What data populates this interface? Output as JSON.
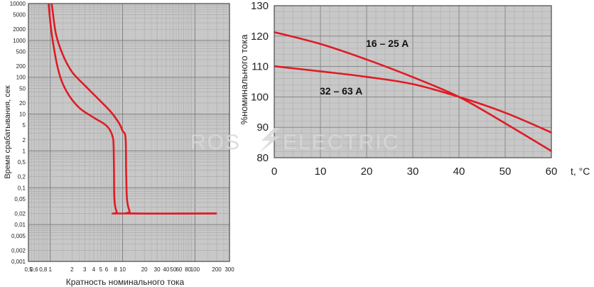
{
  "colors": {
    "curve": "#e01b24",
    "plot_bg": "#c8c8c8",
    "grid_minor": "#a9a9a9",
    "grid_major": "#808080",
    "frame": "#4a4a4a",
    "watermark": "#d8d8d8"
  },
  "watermark": {
    "left": "ROS",
    "right": "ELECTRIC"
  },
  "chart_data": [
    {
      "type": "line",
      "scale": "log-log",
      "title": "",
      "xlabel": "Кратность номинального тока",
      "ylabel": "Время срабатывания, сек",
      "xlim": [
        0.5,
        300
      ],
      "ylim": [
        0.001,
        10000
      ],
      "grid": true,
      "x_ticks": [
        {
          "v": 0.5,
          "t": "0,5"
        },
        {
          "v": 0.6,
          "t": "0,6"
        },
        {
          "v": 0.8,
          "t": "0,8"
        },
        {
          "v": 1,
          "t": "1"
        },
        {
          "v": 2,
          "t": "2"
        },
        {
          "v": 3,
          "t": "3"
        },
        {
          "v": 4,
          "t": "4"
        },
        {
          "v": 5,
          "t": "5"
        },
        {
          "v": 6,
          "t": "6"
        },
        {
          "v": 8,
          "t": "8"
        },
        {
          "v": 10,
          "t": "10"
        },
        {
          "v": 20,
          "t": "20"
        },
        {
          "v": 30,
          "t": "30"
        },
        {
          "v": 40,
          "t": "40"
        },
        {
          "v": 50,
          "t": "50"
        },
        {
          "v": 60,
          "t": "60"
        },
        {
          "v": 80,
          "t": "80"
        },
        {
          "v": 100,
          "t": "100"
        },
        {
          "v": 200,
          "t": "200"
        },
        {
          "v": 300,
          "t": "300"
        }
      ],
      "y_ticks": [
        {
          "v": 10000,
          "t": "10000"
        },
        {
          "v": 5000,
          "t": "5000"
        },
        {
          "v": 2000,
          "t": "2000"
        },
        {
          "v": 1000,
          "t": "1000"
        },
        {
          "v": 500,
          "t": "500"
        },
        {
          "v": 200,
          "t": "200"
        },
        {
          "v": 100,
          "t": "100"
        },
        {
          "v": 50,
          "t": "50"
        },
        {
          "v": 20,
          "t": "20"
        },
        {
          "v": 10,
          "t": "10"
        },
        {
          "v": 5,
          "t": "5"
        },
        {
          "v": 2,
          "t": "2"
        },
        {
          "v": 1,
          "t": "1"
        },
        {
          "v": 0.5,
          "t": "0,5"
        },
        {
          "v": 0.2,
          "t": "0,2"
        },
        {
          "v": 0.1,
          "t": "0,1"
        },
        {
          "v": 0.05,
          "t": "0,05"
        },
        {
          "v": 0.02,
          "t": "0,02"
        },
        {
          "v": 0.01,
          "t": "0,01"
        },
        {
          "v": 0.005,
          "t": "0,005"
        },
        {
          "v": 0.002,
          "t": "0,002"
        },
        {
          "v": 0.001,
          "t": "0,001"
        }
      ],
      "series": [
        {
          "points": [
            [
              1.05,
              10000
            ],
            [
              1.2,
              1500
            ],
            [
              1.5,
              400
            ],
            [
              2,
              140
            ],
            [
              3,
              60
            ],
            [
              5,
              22
            ],
            [
              7,
              11
            ],
            [
              9,
              5.5
            ],
            [
              10,
              3.5
            ],
            [
              11,
              2.3
            ],
            [
              11.2,
              0.3
            ],
            [
              11.5,
              0.05
            ],
            [
              12.5,
              0.023
            ],
            [
              14,
              0.02
            ],
            [
              200,
              0.02
            ]
          ]
        },
        {
          "points": [
            [
              0.95,
              10000
            ],
            [
              1.05,
              1500
            ],
            [
              1.3,
              150
            ],
            [
              1.7,
              40
            ],
            [
              2.5,
              15
            ],
            [
              4,
              8
            ],
            [
              5.5,
              5.5
            ],
            [
              6.5,
              4
            ],
            [
              7.3,
              2.4
            ],
            [
              7.5,
              1.5
            ],
            [
              7.6,
              0.3
            ],
            [
              7.7,
              0.05
            ],
            [
              8.3,
              0.022
            ],
            [
              9.5,
              0.02
            ],
            [
              200,
              0.02
            ]
          ]
        }
      ]
    },
    {
      "type": "line",
      "title": "",
      "xlabel": "t, °C",
      "ylabel": "%номинального тока",
      "xlim": [
        0,
        60
      ],
      "ylim": [
        80,
        130
      ],
      "grid": true,
      "x_ticks": [
        0,
        10,
        20,
        30,
        40,
        50,
        60
      ],
      "y_ticks": [
        80,
        90,
        100,
        110,
        120,
        130
      ],
      "series": [
        {
          "name": "16 – 25 A",
          "x": [
            0,
            10,
            20,
            30,
            40,
            50,
            60
          ],
          "values": [
            121.3,
            117.4,
            112.3,
            106.5,
            100.0,
            91.3,
            82.2
          ]
        },
        {
          "name": "32 – 63 A",
          "x": [
            0,
            10,
            20,
            30,
            40,
            50,
            60
          ],
          "values": [
            110.1,
            108.4,
            106.6,
            104.2,
            100.0,
            94.8,
            88.3
          ]
        }
      ]
    }
  ]
}
